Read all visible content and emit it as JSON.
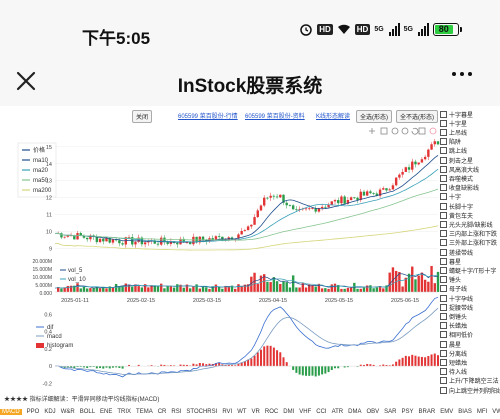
{
  "status": {
    "time": "下午5:05",
    "signal1": "5G",
    "signal2": "5G",
    "battery": "80",
    "hd": "HD"
  },
  "app": {
    "title": "InStock股票系统"
  },
  "toolbar": {
    "close_label": "关闭",
    "link1": "605599 菜百股份-行情",
    "link2": "605599 菜百股份-资料",
    "link3": "K线形态解读",
    "btn_select_all": "全选(形态)",
    "btn_cancel_all": "全不选(形态)"
  },
  "legend_top": [
    "价格",
    "ma10",
    "ma20",
    "ma50",
    "ma200"
  ],
  "legend_vol": [
    "vol_5",
    "vol_10"
  ],
  "legend_macd": [
    "dif",
    "macd",
    "histogram"
  ],
  "y_axis_top": [
    "15",
    "14",
    "13",
    "12",
    "11",
    "10",
    "9"
  ],
  "y_axis_vol": [
    "20.000M",
    "15.000M",
    "10.000M",
    "5.000M",
    "0.000"
  ],
  "y_axis_macd": [
    "0.6",
    "0.4",
    "0.2",
    "0",
    "-0.2"
  ],
  "x_axis": [
    "2025-01-11",
    "2025-02-15",
    "2025-03-15",
    "2025-04-15",
    "2025-05-15",
    "2025-06-15"
  ],
  "patterns": [
    "十字暮星",
    "十字星",
    "上吊线",
    "陷阱",
    "跳上线",
    "刺击之星",
    "风高浪大线",
    "吞噬模式",
    "收盘缺影线",
    "十字",
    "长脚十字",
    "黄包车夫",
    "光头光脚/缺影线",
    "三内部上涨和下跌",
    "三外部上涨和下跌",
    "搓揉带线",
    "暮星",
    "蜻蜓十字/T形十字",
    "锤头",
    "母子线",
    "十字孕线",
    "捉腰带线",
    "倒锤头",
    "长蜡烛",
    "相同低价",
    "晨星",
    "分离线",
    "短蜡烛",
    "待入线",
    "上升/下降跳空三法",
    "向上跳空并列阴阳线"
  ],
  "bottom_note": "★★★★ 指标详细解读：平滑异同移动平均线指标(MACD)",
  "tabs": [
    "MACD",
    "PPO",
    "KDJ",
    "W&R",
    "BOLL",
    "ENE",
    "TRIX",
    "TEMA",
    "CR",
    "RSI",
    "STOCHRSI",
    "RVI",
    "WT",
    "VR",
    "ROC",
    "DMI",
    "VHF",
    "CCI",
    "ATR",
    "DMA",
    "OBV",
    "SAR",
    "PSY",
    "BRAR",
    "EMV",
    "BIAS",
    "MFI",
    "VWMA",
    "SUPERTREND",
    "DPO",
    "FI"
  ],
  "colors": {
    "up": "#e23434",
    "down": "#2a9d4a",
    "ma10": "#1f4e8c",
    "ma20": "#3aa0b8",
    "ma50": "#86c48f",
    "ma200": "#d5d57a",
    "dif": "#3a6fd0",
    "macd": "#7a9cc0",
    "accent": "#f5a623"
  }
}
